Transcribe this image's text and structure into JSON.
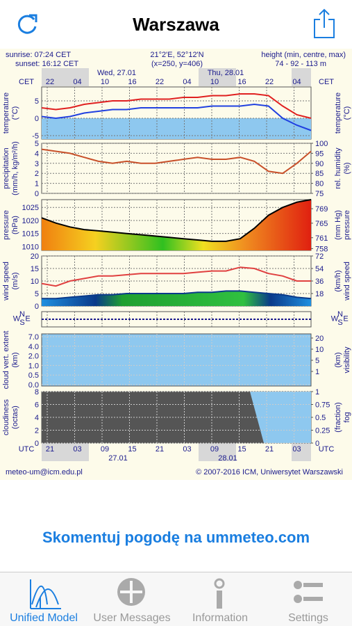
{
  "header": {
    "title": "Warszawa"
  },
  "meteogram": {
    "sunrise": "sunrise: 07:24 CET",
    "sunset": "sunset: 16:12 CET",
    "coords": "21°2'E, 52°12'N",
    "grid_point": "(x=250, y=406)",
    "height_label": "height (min, centre, max)",
    "height_values": "74 - 92 - 113 m",
    "dates_top": [
      "Wed, 27.01",
      "Thu, 28.01"
    ],
    "cet_label": "CET",
    "cet_hours": [
      "22",
      "04",
      "10",
      "16",
      "22",
      "04",
      "10",
      "16",
      "22",
      "04"
    ],
    "utc_label": "UTC",
    "utc_hours": [
      "21",
      "03",
      "09",
      "15",
      "21",
      "03",
      "09",
      "15",
      "21",
      "03"
    ],
    "dates_bottom": [
      "27.01",
      "28.01"
    ],
    "compass": [
      "W",
      "N",
      "E",
      "S"
    ],
    "panels": [
      {
        "label": [
          "temperature",
          "(°C)"
        ],
        "right_label": [
          "temperature",
          "(°C)"
        ],
        "ylim": [
          -6,
          9
        ],
        "yticks": [
          5,
          0,
          -5
        ],
        "series": [
          {
            "color": "#e02020",
            "values": [
              3,
              2.5,
              3,
              4,
              4.5,
              5,
              5,
              5.5,
              5.5,
              5.5,
              6,
              6,
              6.5,
              6.5,
              7,
              7,
              6.5,
              3.5,
              1,
              0
            ]
          },
          {
            "color": "#2040e0",
            "values": [
              0.5,
              0,
              0.5,
              1.5,
              2,
              2.5,
              2.5,
              3,
              3,
              3,
              3,
              3,
              3.5,
              3.5,
              3.5,
              4,
              3.5,
              0,
              -2,
              -3.5
            ]
          }
        ]
      },
      {
        "label": [
          "precipitation",
          "(mm/h, kg/m²/h)"
        ],
        "right_label": [
          "rel. humidity",
          "(%)"
        ],
        "ylim": [
          0,
          5
        ],
        "yticks": [
          5,
          4,
          3,
          2,
          1,
          0
        ],
        "y2lim": [
          75,
          100
        ],
        "y2ticks": [
          100,
          95,
          90,
          85,
          80,
          75
        ],
        "series": [
          {
            "color": "#c8502a",
            "axis": "y2",
            "values": [
              97,
              96,
              95,
              93,
              91,
              90,
              91,
              90,
              90,
              91,
              92,
              93,
              92,
              92,
              93,
              91,
              86,
              85,
              90,
              96
            ]
          }
        ]
      },
      {
        "label": [
          "pressure",
          "(hPa)"
        ],
        "right_label": [
          "(mm Hg)",
          "pressure"
        ],
        "ylim": [
          1008.5,
          1028
        ],
        "yticks": [
          1025,
          1020,
          1015,
          1010
        ],
        "y2lim": [
          757.5,
          771.5
        ],
        "y2ticks": [
          769,
          765,
          761,
          758
        ],
        "series": [
          {
            "color": "#000000",
            "area": true,
            "values": [
              1021,
              1019,
              1017.5,
              1016.5,
              1016,
              1015.5,
              1015,
              1014.5,
              1014,
              1013.5,
              1013,
              1012.5,
              1012,
              1012,
              1013,
              1017,
              1022,
              1025,
              1027,
              1028
            ]
          }
        ]
      },
      {
        "label": [
          "wind speed",
          "(m/s)"
        ],
        "right_label": [
          "(km/h)",
          "wind speed"
        ],
        "ylim": [
          0,
          20
        ],
        "yticks": [
          20,
          15,
          10,
          5,
          0
        ],
        "y2lim": [
          0,
          72
        ],
        "y2ticks": [
          72,
          54,
          36,
          18
        ],
        "series": [
          {
            "color": "#0a3a8a",
            "area": true,
            "values": [
              3,
              3,
              3.5,
              4,
              4.5,
              4.5,
              5,
              5,
              5,
              5,
              5,
              5.5,
              5.5,
              6,
              6,
              5.5,
              5,
              4.5,
              3.5,
              3
            ]
          },
          {
            "color": "#e04040",
            "values": [
              9,
              8,
              10,
              11,
              12,
              12,
              12.5,
              13,
              13,
              13,
              13,
              13.5,
              14,
              14,
              15.5,
              15,
              13,
              12,
              10,
              10
            ]
          }
        ]
      },
      {
        "compass_panel": true
      },
      {
        "label": [
          "cloud vert. extent",
          "(km)"
        ],
        "right_label": [
          "(km)",
          "visibility"
        ],
        "yticks": [
          {
            "value": 7,
            "label": "7.0"
          },
          {
            "value": 4,
            "label": "4.0"
          },
          {
            "value": 2,
            "label": "2.0"
          },
          {
            "value": 1,
            "label": "1.0"
          },
          0.5,
          {
            "value": 0,
            "label": "0.0"
          }
        ],
        "y2ticks": [
          20,
          10,
          5,
          1
        ]
      },
      {
        "label": [
          "cloudiness",
          "(octas)"
        ],
        "right_label": [
          "(fraction)",
          "fog"
        ],
        "ylim": [
          0,
          8
        ],
        "yticks": [
          8,
          6,
          4,
          2,
          0
        ],
        "y2lim": [
          0,
          1
        ],
        "y2ticks": [
          1,
          0.75,
          0.5,
          0.25,
          0
        ]
      }
    ],
    "footer_left": "meteo-um@icm.edu.pl",
    "footer_right": "© 2007-2016 ICM, Uniwersytet Warszawski"
  },
  "comment_link": "Skomentuj pogodę na ummeteo.com",
  "tabs": [
    "Unified Model",
    "User Messages",
    "Information",
    "Settings"
  ]
}
